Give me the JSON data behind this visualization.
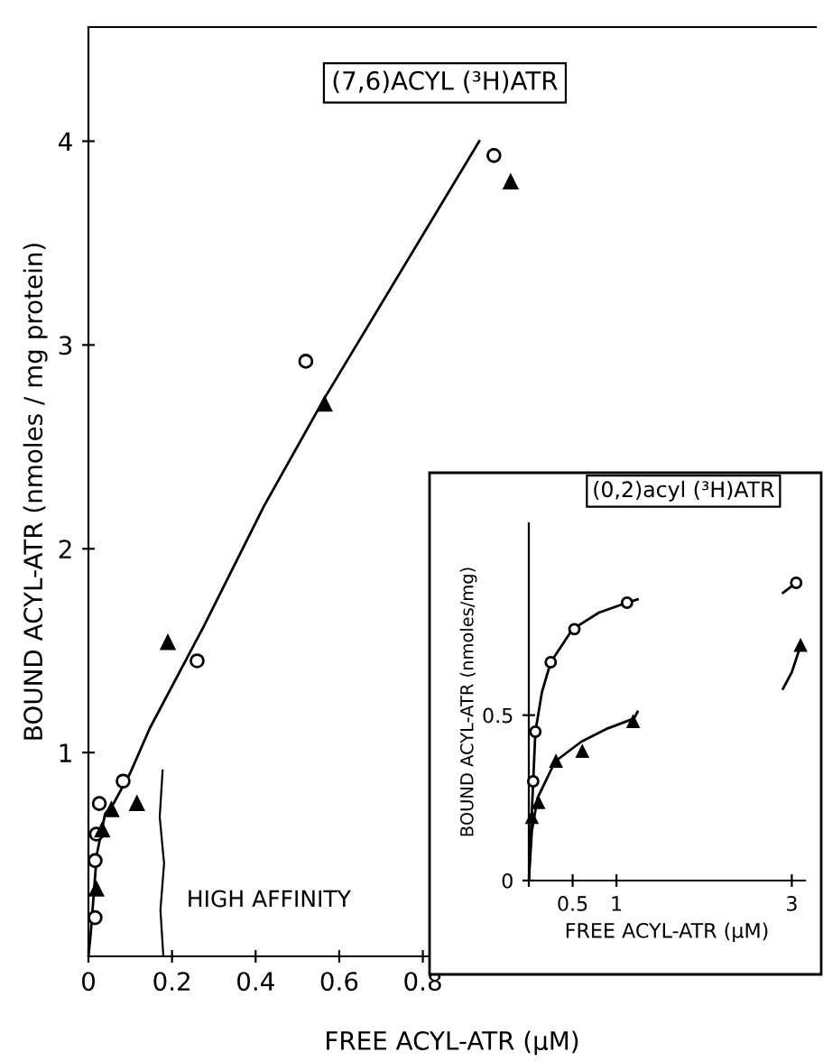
{
  "chart_data": [
    {
      "type": "scatter",
      "title": "(7,6)ACYL (³H)ATR",
      "xlabel": "FREE ACYL-ATR (μM)",
      "ylabel": "BOUND ACYL-ATR (nmoles / mg protein)",
      "xlim": [
        0,
        1.74
      ],
      "ylim": [
        0,
        4.56
      ],
      "xticks": [
        0,
        0.2,
        0.4,
        0.6,
        0.8
      ],
      "yticks": [
        1,
        2,
        3,
        4
      ],
      "grid": false,
      "legend": false,
      "annotations": [
        "HIGH AFFINITY"
      ],
      "series": [
        {
          "marker": "circle",
          "color": "#000000",
          "x": [
            0.016,
            0.016,
            0.019,
            0.026,
            0.083,
            0.26,
            0.52,
            0.97
          ],
          "values": [
            0.19,
            0.47,
            0.6,
            0.75,
            0.86,
            1.45,
            2.92,
            3.93
          ]
        },
        {
          "marker": "triangle",
          "color": "#000000",
          "x": [
            0.019,
            0.033,
            0.055,
            0.116,
            0.19,
            0.565,
            1.01
          ],
          "values": [
            0.33,
            0.62,
            0.72,
            0.75,
            1.54,
            2.71,
            3.8
          ]
        },
        {
          "type": "line",
          "marker": "none",
          "color": "#000000",
          "x": [
            0.0,
            0.005,
            0.02,
            0.04,
            0.06,
            0.1,
            0.147,
            0.276,
            0.42,
            0.565,
            0.935
          ],
          "values": [
            0.0,
            0.1,
            0.5,
            0.7,
            0.75,
            0.9,
            1.12,
            1.62,
            2.21,
            2.74,
            4.0
          ]
        }
      ]
    },
    {
      "type": "scatter",
      "title": "(0,2)acyl (³H)ATR",
      "xlabel": "FREE ACYL-ATR (μM)",
      "ylabel": "BOUND ACYL-ATR (nmoles/mg)",
      "xlim": [
        0,
        3.15
      ],
      "ylim": [
        0,
        1.08
      ],
      "xticks": [
        {
          "value": 0,
          "label": null
        },
        0.5,
        1,
        3
      ],
      "yticks": [
        0,
        0.5
      ],
      "grid": false,
      "legend": false,
      "series": [
        {
          "marker": "circle",
          "color": "#000000",
          "x": [
            0.05,
            0.075,
            0.25,
            0.52,
            1.12,
            3.05
          ],
          "values": [
            0.3,
            0.45,
            0.66,
            0.76,
            0.84,
            0.9
          ]
        },
        {
          "marker": "triangle",
          "color": "#000000",
          "x": [
            0.035,
            0.11,
            0.31,
            0.61,
            1.19,
            3.1
          ],
          "values": [
            0.19,
            0.235,
            0.36,
            0.39,
            0.48,
            0.71
          ]
        },
        {
          "type": "line",
          "marker": "none",
          "color": "#000000",
          "x": [
            0.0,
            0.05,
            0.075,
            0.15,
            0.25,
            0.5,
            0.8,
            1.12,
            1.24,
            2.0,
            2.9,
            3.05
          ],
          "values": [
            0.0,
            0.3,
            0.45,
            0.57,
            0.66,
            0.76,
            0.81,
            0.84,
            0.85,
            null,
            0.87,
            0.9
          ]
        },
        {
          "type": "line",
          "marker": "none",
          "color": "#000000",
          "x": [
            0.0,
            0.035,
            0.1,
            0.3,
            0.6,
            0.9,
            1.2,
            1.24,
            2.0,
            2.9,
            3.0,
            3.1
          ],
          "values": [
            0.0,
            0.15,
            0.25,
            0.36,
            0.42,
            0.46,
            0.49,
            0.51,
            null,
            0.58,
            0.63,
            0.71
          ]
        }
      ]
    }
  ]
}
